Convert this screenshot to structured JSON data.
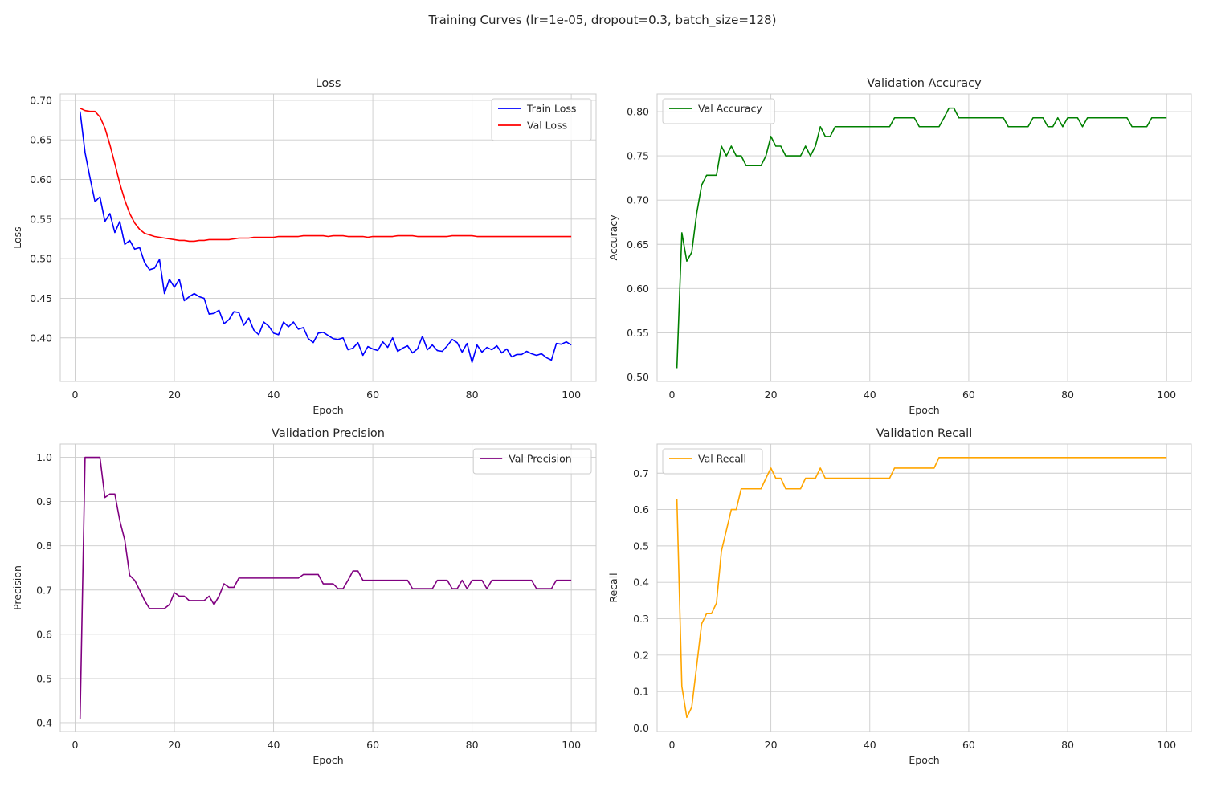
{
  "figure": {
    "suptitle": "Training Curves (lr=1e-05, dropout=0.3, batch_size=128)"
  },
  "chart_data": [
    {
      "type": "line",
      "title": "Loss",
      "xlabel": "Epoch",
      "ylabel": "Loss",
      "xlim": [
        -3,
        105
      ],
      "ylim": [
        0.345,
        0.708
      ],
      "xticks": [
        0,
        20,
        40,
        60,
        80,
        100
      ],
      "yticks": [
        0.4,
        0.45,
        0.5,
        0.55,
        0.6,
        0.65,
        0.7
      ],
      "ytick_decimals": 2,
      "grid": true,
      "legend": "upper right",
      "series": [
        {
          "name": "Train Loss",
          "color": "#0000ff",
          "values": [
            0.686,
            0.634,
            0.602,
            0.572,
            0.578,
            0.547,
            0.557,
            0.533,
            0.547,
            0.518,
            0.523,
            0.512,
            0.514,
            0.495,
            0.486,
            0.488,
            0.499,
            0.456,
            0.474,
            0.464,
            0.474,
            0.447,
            0.452,
            0.456,
            0.452,
            0.45,
            0.43,
            0.431,
            0.435,
            0.418,
            0.423,
            0.433,
            0.432,
            0.416,
            0.425,
            0.41,
            0.404,
            0.42,
            0.415,
            0.406,
            0.404,
            0.42,
            0.414,
            0.42,
            0.411,
            0.413,
            0.399,
            0.394,
            0.406,
            0.407,
            0.403,
            0.399,
            0.398,
            0.4,
            0.385,
            0.387,
            0.394,
            0.378,
            0.389,
            0.386,
            0.384,
            0.395,
            0.388,
            0.4,
            0.383,
            0.387,
            0.39,
            0.381,
            0.386,
            0.402,
            0.385,
            0.391,
            0.384,
            0.383,
            0.39,
            0.398,
            0.394,
            0.382,
            0.393,
            0.369,
            0.391,
            0.382,
            0.388,
            0.385,
            0.39,
            0.381,
            0.386,
            0.376,
            0.379,
            0.379,
            0.383,
            0.38,
            0.378,
            0.38,
            0.375,
            0.372,
            0.393,
            0.392,
            0.395,
            0.391
          ]
        },
        {
          "name": "Val Loss",
          "color": "#ff0000",
          "values": [
            0.69,
            0.687,
            0.686,
            0.686,
            0.679,
            0.665,
            0.644,
            0.62,
            0.595,
            0.574,
            0.557,
            0.545,
            0.537,
            0.532,
            0.53,
            0.528,
            0.527,
            0.526,
            0.525,
            0.524,
            0.523,
            0.523,
            0.522,
            0.522,
            0.523,
            0.523,
            0.524,
            0.524,
            0.524,
            0.524,
            0.524,
            0.525,
            0.526,
            0.526,
            0.526,
            0.527,
            0.527,
            0.527,
            0.527,
            0.527,
            0.528,
            0.528,
            0.528,
            0.528,
            0.528,
            0.529,
            0.529,
            0.529,
            0.529,
            0.529,
            0.528,
            0.529,
            0.529,
            0.529,
            0.528,
            0.528,
            0.528,
            0.528,
            0.527,
            0.528,
            0.528,
            0.528,
            0.528,
            0.528,
            0.529,
            0.529,
            0.529,
            0.529,
            0.528,
            0.528,
            0.528,
            0.528,
            0.528,
            0.528,
            0.528,
            0.529,
            0.529,
            0.529,
            0.529,
            0.529,
            0.528,
            0.528,
            0.528,
            0.528,
            0.528,
            0.528,
            0.528,
            0.528,
            0.528,
            0.528,
            0.528,
            0.528,
            0.528,
            0.528,
            0.528,
            0.528,
            0.528,
            0.528,
            0.528,
            0.528
          ]
        }
      ]
    },
    {
      "type": "line",
      "title": "Validation Accuracy",
      "xlabel": "Epoch",
      "ylabel": "Accuracy",
      "xlim": [
        -3,
        105
      ],
      "ylim": [
        0.495,
        0.82
      ],
      "xticks": [
        0,
        20,
        40,
        60,
        80,
        100
      ],
      "yticks": [
        0.5,
        0.55,
        0.6,
        0.65,
        0.7,
        0.75,
        0.8
      ],
      "ytick_decimals": 2,
      "grid": true,
      "legend": "upper left",
      "series": [
        {
          "name": "Val Accuracy",
          "color": "#008000",
          "values": [
            0.51,
            0.663,
            0.631,
            0.641,
            0.685,
            0.717,
            0.728,
            0.728,
            0.728,
            0.761,
            0.75,
            0.761,
            0.75,
            0.75,
            0.739,
            0.739,
            0.739,
            0.739,
            0.75,
            0.772,
            0.761,
            0.761,
            0.75,
            0.75,
            0.75,
            0.75,
            0.761,
            0.75,
            0.761,
            0.783,
            0.772,
            0.772,
            0.783,
            0.783,
            0.783,
            0.783,
            0.783,
            0.783,
            0.783,
            0.783,
            0.783,
            0.783,
            0.783,
            0.783,
            0.793,
            0.793,
            0.793,
            0.793,
            0.793,
            0.783,
            0.783,
            0.783,
            0.783,
            0.783,
            0.793,
            0.804,
            0.804,
            0.793,
            0.793,
            0.793,
            0.793,
            0.793,
            0.793,
            0.793,
            0.793,
            0.793,
            0.793,
            0.783,
            0.783,
            0.783,
            0.783,
            0.783,
            0.793,
            0.793,
            0.793,
            0.783,
            0.783,
            0.793,
            0.783,
            0.793,
            0.793,
            0.793,
            0.783,
            0.793,
            0.793,
            0.793,
            0.793,
            0.793,
            0.793,
            0.793,
            0.793,
            0.793,
            0.783,
            0.783,
            0.783,
            0.783,
            0.793,
            0.793,
            0.793,
            0.793
          ]
        }
      ]
    },
    {
      "type": "line",
      "title": "Validation Precision",
      "xlabel": "Epoch",
      "ylabel": "Precision",
      "xlim": [
        -3,
        105
      ],
      "ylim": [
        0.38,
        1.03
      ],
      "xticks": [
        0,
        20,
        40,
        60,
        80,
        100
      ],
      "yticks": [
        0.4,
        0.5,
        0.6,
        0.7,
        0.8,
        0.9,
        1.0
      ],
      "ytick_decimals": 1,
      "grid": true,
      "legend": "upper right",
      "series": [
        {
          "name": "Val Precision",
          "color": "#800080",
          "values": [
            0.409,
            1.0,
            1.0,
            1.0,
            1.0,
            0.909,
            0.917,
            0.917,
            0.857,
            0.813,
            0.733,
            0.722,
            0.7,
            0.676,
            0.658,
            0.658,
            0.658,
            0.658,
            0.667,
            0.694,
            0.686,
            0.686,
            0.676,
            0.676,
            0.676,
            0.676,
            0.686,
            0.667,
            0.686,
            0.714,
            0.706,
            0.706,
            0.727,
            0.727,
            0.727,
            0.727,
            0.727,
            0.727,
            0.727,
            0.727,
            0.727,
            0.727,
            0.727,
            0.727,
            0.727,
            0.735,
            0.735,
            0.735,
            0.735,
            0.714,
            0.714,
            0.714,
            0.703,
            0.703,
            0.722,
            0.743,
            0.743,
            0.722,
            0.722,
            0.722,
            0.722,
            0.722,
            0.722,
            0.722,
            0.722,
            0.722,
            0.722,
            0.703,
            0.703,
            0.703,
            0.703,
            0.703,
            0.722,
            0.722,
            0.722,
            0.703,
            0.703,
            0.722,
            0.703,
            0.722,
            0.722,
            0.722,
            0.703,
            0.722,
            0.722,
            0.722,
            0.722,
            0.722,
            0.722,
            0.722,
            0.722,
            0.722,
            0.703,
            0.703,
            0.703,
            0.703,
            0.722,
            0.722,
            0.722,
            0.722
          ]
        }
      ]
    },
    {
      "type": "line",
      "title": "Validation Recall",
      "xlabel": "Epoch",
      "ylabel": "Recall",
      "xlim": [
        -3,
        105
      ],
      "ylim": [
        -0.01,
        0.78
      ],
      "xticks": [
        0,
        20,
        40,
        60,
        80,
        100
      ],
      "yticks": [
        0.0,
        0.1,
        0.2,
        0.3,
        0.4,
        0.5,
        0.6,
        0.7
      ],
      "ytick_decimals": 1,
      "grid": true,
      "legend": "upper left",
      "series": [
        {
          "name": "Val Recall",
          "color": "#ffa500",
          "values": [
            0.629,
            0.114,
            0.029,
            0.057,
            0.171,
            0.286,
            0.314,
            0.314,
            0.343,
            0.486,
            0.543,
            0.6,
            0.6,
            0.657,
            0.657,
            0.657,
            0.657,
            0.657,
            0.686,
            0.714,
            0.686,
            0.686,
            0.657,
            0.657,
            0.657,
            0.657,
            0.686,
            0.686,
            0.686,
            0.714,
            0.686,
            0.686,
            0.686,
            0.686,
            0.686,
            0.686,
            0.686,
            0.686,
            0.686,
            0.686,
            0.686,
            0.686,
            0.686,
            0.686,
            0.714,
            0.714,
            0.714,
            0.714,
            0.714,
            0.714,
            0.714,
            0.714,
            0.714,
            0.743,
            0.743,
            0.743,
            0.743,
            0.743,
            0.743,
            0.743,
            0.743,
            0.743,
            0.743,
            0.743,
            0.743,
            0.743,
            0.743,
            0.743,
            0.743,
            0.743,
            0.743,
            0.743,
            0.743,
            0.743,
            0.743,
            0.743,
            0.743,
            0.743,
            0.743,
            0.743,
            0.743,
            0.743,
            0.743,
            0.743,
            0.743,
            0.743,
            0.743,
            0.743,
            0.743,
            0.743,
            0.743,
            0.743,
            0.743,
            0.743,
            0.743,
            0.743,
            0.743,
            0.743,
            0.743,
            0.743
          ]
        }
      ]
    }
  ]
}
